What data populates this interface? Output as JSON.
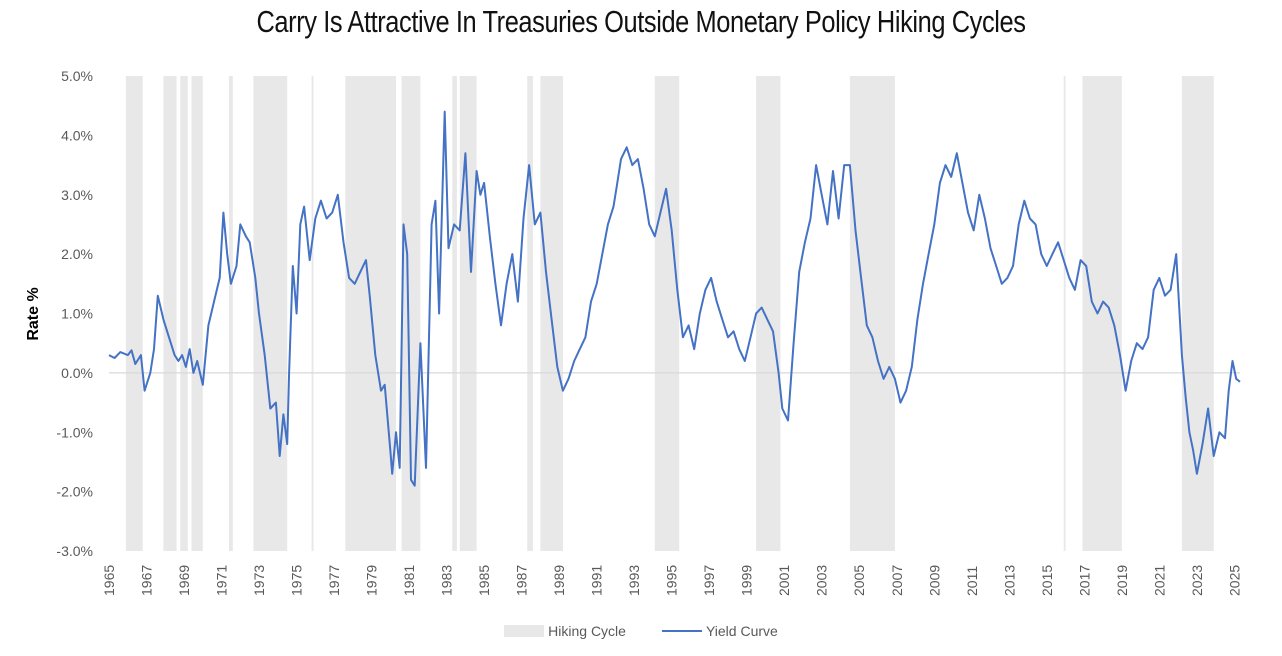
{
  "chart_data": {
    "type": "line",
    "title": "Carry Is Attractive In Treasuries Outside Monetary Policy Hiking Cycles",
    "ylabel": "Rate %",
    "xlabel": "",
    "xlim": [
      1965.0,
      2025.3
    ],
    "ylim": [
      -3.0,
      5.0
    ],
    "y_ticks": [
      "5.0%",
      "4.0%",
      "3.0%",
      "2.0%",
      "1.0%",
      "0.0%",
      "-1.0%",
      "-2.0%",
      "-3.0%"
    ],
    "x_ticks": [
      "1965",
      "1967",
      "1969",
      "1971",
      "1973",
      "1975",
      "1977",
      "1979",
      "1981",
      "1983",
      "1985",
      "1987",
      "1989",
      "1991",
      "1993",
      "1995",
      "1997",
      "1999",
      "2001",
      "2003",
      "2005",
      "2007",
      "2009",
      "2011",
      "2013",
      "2015",
      "2017",
      "2019",
      "2021",
      "2023",
      "2025"
    ],
    "legend": {
      "position": "bottom",
      "hiking": "Hiking Cycle",
      "curve": "Yield Curve"
    },
    "colors": {
      "line": "#4472c4",
      "shade": "#e8e8e8",
      "zero": "#d9d9d9"
    },
    "hiking_cycles": [
      [
        1965.9,
        1966.8
      ],
      [
        1967.9,
        1968.6
      ],
      [
        1968.8,
        1969.2
      ],
      [
        1969.4,
        1970.0
      ],
      [
        1971.4,
        1971.6
      ],
      [
        1972.7,
        1974.5
      ],
      [
        1975.8,
        1975.9
      ],
      [
        1977.6,
        1980.3
      ],
      [
        1980.6,
        1981.6
      ],
      [
        1983.3,
        1983.55
      ],
      [
        1983.7,
        1984.6
      ],
      [
        1987.3,
        1987.6
      ],
      [
        1988.0,
        1989.2
      ],
      [
        1994.1,
        1995.4
      ],
      [
        1999.5,
        2000.8
      ],
      [
        2004.5,
        2006.9
      ],
      [
        2015.9,
        2016.0
      ],
      [
        2016.9,
        2019.0
      ],
      [
        2022.2,
        2023.9
      ]
    ],
    "series": [
      {
        "name": "Yield Curve",
        "x": [
          1965.0,
          1965.3,
          1965.6,
          1966.0,
          1966.2,
          1966.4,
          1966.7,
          1966.9,
          1967.2,
          1967.4,
          1967.6,
          1967.9,
          1968.2,
          1968.5,
          1968.7,
          1968.9,
          1969.1,
          1969.3,
          1969.5,
          1969.7,
          1970.0,
          1970.3,
          1970.6,
          1970.9,
          1971.1,
          1971.3,
          1971.5,
          1971.8,
          1972.0,
          1972.3,
          1972.5,
          1972.8,
          1973.0,
          1973.3,
          1973.6,
          1973.9,
          1974.1,
          1974.3,
          1974.5,
          1974.6,
          1974.8,
          1975.0,
          1975.2,
          1975.4,
          1975.7,
          1976.0,
          1976.3,
          1976.6,
          1976.9,
          1977.2,
          1977.5,
          1977.8,
          1978.1,
          1978.4,
          1978.7,
          1978.9,
          1979.2,
          1979.5,
          1979.7,
          1980.0,
          1980.1,
          1980.3,
          1980.5,
          1980.7,
          1980.9,
          1981.1,
          1981.3,
          1981.6,
          1981.9,
          1982.2,
          1982.4,
          1982.6,
          1982.9,
          1983.1,
          1983.4,
          1983.7,
          1984.0,
          1984.3,
          1984.6,
          1984.8,
          1985.0,
          1985.3,
          1985.6,
          1985.9,
          1986.2,
          1986.5,
          1986.8,
          1987.1,
          1987.4,
          1987.7,
          1988.0,
          1988.3,
          1988.6,
          1988.9,
          1989.2,
          1989.5,
          1989.8,
          1990.1,
          1990.4,
          1990.7,
          1991.0,
          1991.3,
          1991.6,
          1991.9,
          1992.1,
          1992.3,
          1992.6,
          1992.9,
          1993.2,
          1993.5,
          1993.8,
          1994.1,
          1994.4,
          1994.7,
          1995.0,
          1995.3,
          1995.6,
          1995.9,
          1996.2,
          1996.5,
          1996.8,
          1997.1,
          1997.4,
          1997.7,
          1998.0,
          1998.3,
          1998.6,
          1998.9,
          1999.2,
          1999.5,
          1999.8,
          2000.1,
          2000.4,
          2000.7,
          2000.9,
          2001.2,
          2001.5,
          2001.8,
          2002.1,
          2002.4,
          2002.7,
          2003.0,
          2003.3,
          2003.6,
          2003.9,
          2004.2,
          2004.5,
          2004.8,
          2005.1,
          2005.4,
          2005.7,
          2006.0,
          2006.3,
          2006.6,
          2006.9,
          2007.2,
          2007.5,
          2007.8,
          2008.1,
          2008.4,
          2008.7,
          2009.0,
          2009.3,
          2009.6,
          2009.9,
          2010.2,
          2010.5,
          2010.8,
          2011.1,
          2011.4,
          2011.7,
          2012.0,
          2012.3,
          2012.6,
          2012.9,
          2013.2,
          2013.5,
          2013.8,
          2014.1,
          2014.4,
          2014.7,
          2015.0,
          2015.3,
          2015.6,
          2015.9,
          2016.2,
          2016.5,
          2016.8,
          2017.1,
          2017.4,
          2017.7,
          2018.0,
          2018.3,
          2018.6,
          2018.9,
          2019.2,
          2019.5,
          2019.8,
          2020.1,
          2020.4,
          2020.7,
          2021.0,
          2021.3,
          2021.6,
          2021.9,
          2022.2,
          2022.4,
          2022.6,
          2022.8,
          2023.0,
          2023.3,
          2023.6,
          2023.9,
          2024.2,
          2024.5,
          2024.7,
          2024.9,
          2025.1,
          2025.3
        ],
        "y": [
          0.3,
          0.25,
          0.35,
          0.3,
          0.38,
          0.15,
          0.3,
          -0.3,
          0.0,
          0.4,
          1.3,
          0.9,
          0.6,
          0.3,
          0.2,
          0.3,
          0.1,
          0.4,
          0.0,
          0.2,
          -0.2,
          0.8,
          1.2,
          1.6,
          2.7,
          2.0,
          1.5,
          1.8,
          2.5,
          2.3,
          2.2,
          1.6,
          1.0,
          0.3,
          -0.6,
          -0.5,
          -1.4,
          -0.7,
          -1.2,
          0.0,
          1.8,
          1.0,
          2.5,
          2.8,
          1.9,
          2.6,
          2.9,
          2.6,
          2.7,
          3.0,
          2.2,
          1.6,
          1.5,
          1.7,
          1.9,
          1.3,
          0.3,
          -0.3,
          -0.2,
          -1.3,
          -1.7,
          -1.0,
          -1.6,
          2.5,
          2.0,
          -1.8,
          -1.9,
          0.5,
          -1.6,
          2.5,
          2.9,
          1.0,
          4.4,
          2.1,
          2.5,
          2.4,
          3.7,
          1.7,
          3.4,
          3.0,
          3.2,
          2.3,
          1.5,
          0.8,
          1.5,
          2.0,
          1.2,
          2.6,
          3.5,
          2.5,
          2.7,
          1.7,
          0.9,
          0.1,
          -0.3,
          -0.1,
          0.2,
          0.4,
          0.6,
          1.2,
          1.5,
          2.0,
          2.5,
          2.8,
          3.2,
          3.6,
          3.8,
          3.5,
          3.6,
          3.1,
          2.5,
          2.3,
          2.7,
          3.1,
          2.4,
          1.4,
          0.6,
          0.8,
          0.4,
          1.0,
          1.4,
          1.6,
          1.2,
          0.9,
          0.6,
          0.7,
          0.4,
          0.2,
          0.6,
          1.0,
          1.1,
          0.9,
          0.7,
          0.0,
          -0.6,
          -0.8,
          0.5,
          1.7,
          2.2,
          2.6,
          3.5,
          3.0,
          2.5,
          3.4,
          2.6,
          3.5,
          3.5,
          2.4,
          1.6,
          0.8,
          0.6,
          0.2,
          -0.1,
          0.1,
          -0.1,
          -0.5,
          -0.3,
          0.1,
          0.9,
          1.5,
          2.0,
          2.5,
          3.2,
          3.5,
          3.3,
          3.7,
          3.2,
          2.7,
          2.4,
          3.0,
          2.6,
          2.1,
          1.8,
          1.5,
          1.6,
          1.8,
          2.5,
          2.9,
          2.6,
          2.5,
          2.0,
          1.8,
          2.0,
          2.2,
          1.9,
          1.6,
          1.4,
          1.9,
          1.8,
          1.2,
          1.0,
          1.2,
          1.1,
          0.8,
          0.3,
          -0.3,
          0.2,
          0.5,
          0.4,
          0.6,
          1.4,
          1.6,
          1.3,
          1.4,
          2.0,
          0.3,
          -0.4,
          -1.0,
          -1.3,
          -1.7,
          -1.2,
          -0.6,
          -1.4,
          -1.0,
          -1.1,
          -0.3,
          0.2,
          -0.1,
          -0.15
        ]
      }
    ]
  }
}
